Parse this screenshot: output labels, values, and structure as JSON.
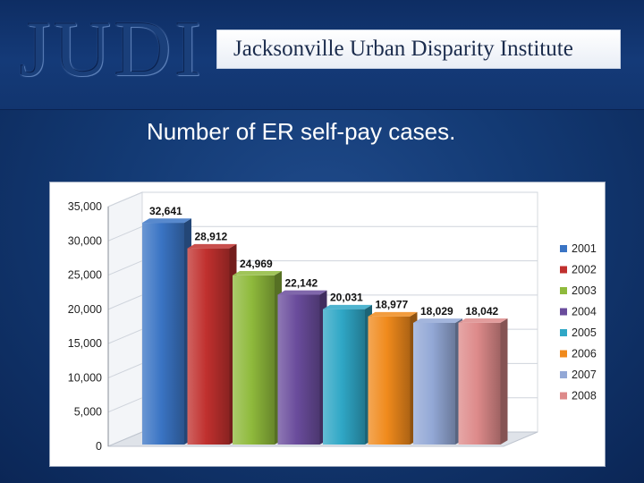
{
  "header": {
    "logo_text": "JUDI",
    "org_name": "Jacksonville Urban Disparity Institute"
  },
  "slide": {
    "title": "Number of ER self-pay cases."
  },
  "chart_data": {
    "type": "bar",
    "title": "",
    "xlabel": "",
    "ylabel": "",
    "categories": [
      "2001",
      "2002",
      "2003",
      "2004",
      "2005",
      "2006",
      "2007",
      "2008"
    ],
    "values": [
      32641,
      28912,
      24969,
      22142,
      20031,
      18977,
      18029,
      18042
    ],
    "value_labels": [
      "32,641",
      "28,912",
      "24,969",
      "22,142",
      "20,031",
      "18,977",
      "18,029",
      "18,042"
    ],
    "ylim": [
      0,
      35000
    ],
    "yticks": [
      0,
      5000,
      10000,
      15000,
      20000,
      25000,
      30000,
      35000
    ],
    "ytick_labels": [
      "0",
      "5,000",
      "10,000",
      "15,000",
      "20,000",
      "25,000",
      "30,000",
      "35,000"
    ],
    "colors": [
      "#3a74c4",
      "#c0302e",
      "#8fba3c",
      "#6a4c9c",
      "#2fa7c6",
      "#f08a1c",
      "#93a8d6",
      "#dd8a8a"
    ],
    "grid": true,
    "legend": "right",
    "style": "3d"
  }
}
